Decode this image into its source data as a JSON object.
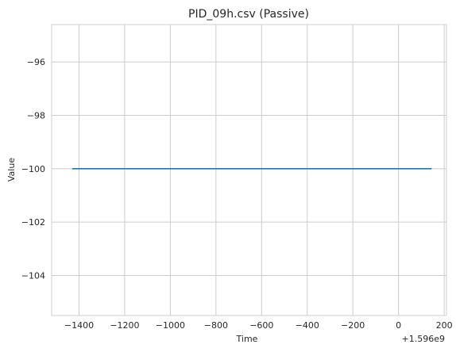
{
  "chart_data": {
    "type": "line",
    "title": "PID_09h.csv (Passive)",
    "xlabel": "Time",
    "ylabel": "Value",
    "x_offset_label": "+1.596e9",
    "xlim": [
      -1520,
      210
    ],
    "ylim": [
      -105.5,
      -94.6
    ],
    "xticks": [
      -1400,
      -1200,
      -1000,
      -800,
      -600,
      -400,
      -200,
      0,
      200
    ],
    "yticks": [
      -104,
      -102,
      -100,
      -98,
      -96
    ],
    "grid": true,
    "series": [
      {
        "x": [
          -1430,
          145
        ],
        "y": [
          -100,
          -100
        ],
        "color": "#1f77b4"
      }
    ]
  }
}
